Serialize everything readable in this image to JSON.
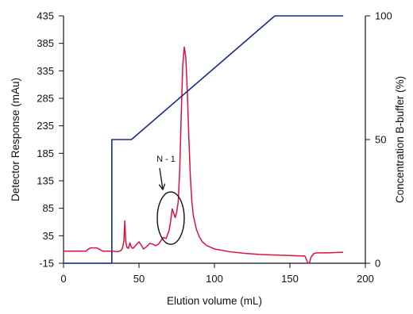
{
  "chart_data": {
    "type": "line",
    "title": "",
    "xlabel": "Elution volume (mL)",
    "ylabel_left": "Detector Response (mAu)",
    "ylabel_right": "Concentration B-buffer (%)",
    "xlim": [
      0,
      200
    ],
    "ylim_left": [
      -15,
      435
    ],
    "ylim_right": [
      0,
      100
    ],
    "x_ticks": [
      0,
      50,
      100,
      150,
      200
    ],
    "y_left_ticks": [
      -15,
      35,
      85,
      135,
      185,
      235,
      285,
      335,
      385,
      435
    ],
    "y_right_ticks": [
      0,
      50,
      100
    ],
    "grid": false,
    "legend": "none",
    "series": [
      {
        "axis": "left",
        "color": "#e0103c",
        "points": [
          [
            0,
            7
          ],
          [
            15,
            7
          ],
          [
            16,
            10
          ],
          [
            18,
            13
          ],
          [
            22,
            13
          ],
          [
            24,
            10
          ],
          [
            26,
            7
          ],
          [
            32,
            7
          ],
          [
            36,
            6
          ],
          [
            38,
            8
          ],
          [
            39,
            12
          ],
          [
            40,
            25
          ],
          [
            40.6,
            62
          ],
          [
            41.2,
            25
          ],
          [
            42,
            14
          ],
          [
            43,
            12
          ],
          [
            44,
            22
          ],
          [
            45,
            14
          ],
          [
            46,
            12
          ],
          [
            48,
            18
          ],
          [
            50,
            24
          ],
          [
            52,
            16
          ],
          [
            53,
            11
          ],
          [
            55,
            15
          ],
          [
            57,
            21
          ],
          [
            59,
            20
          ],
          [
            61,
            17
          ],
          [
            63,
            20
          ],
          [
            65,
            28
          ],
          [
            66,
            32
          ],
          [
            68,
            30
          ],
          [
            70,
            45
          ],
          [
            71,
            62
          ],
          [
            72,
            84
          ],
          [
            73,
            76
          ],
          [
            74,
            68
          ],
          [
            75,
            78
          ],
          [
            76,
            97
          ],
          [
            77,
            155
          ],
          [
            78,
            255
          ],
          [
            79,
            345
          ],
          [
            80,
            378
          ],
          [
            81,
            360
          ],
          [
            82,
            300
          ],
          [
            83,
            215
          ],
          [
            84,
            145
          ],
          [
            85,
            98
          ],
          [
            86,
            72
          ],
          [
            88,
            47
          ],
          [
            90,
            33
          ],
          [
            92,
            24
          ],
          [
            95,
            17
          ],
          [
            100,
            11
          ],
          [
            110,
            6
          ],
          [
            120,
            3
          ],
          [
            130,
            1
          ],
          [
            140,
            0
          ],
          [
            150,
            -1
          ],
          [
            160,
            -2
          ],
          [
            162,
            -15
          ],
          [
            163,
            -14
          ],
          [
            164,
            -4
          ],
          [
            166,
            3
          ],
          [
            168,
            4
          ],
          [
            175,
            4
          ],
          [
            185,
            5
          ]
        ]
      },
      {
        "axis": "right",
        "color": "#1a2a8c",
        "points": [
          [
            0,
            0
          ],
          [
            32,
            0
          ],
          [
            32,
            50
          ],
          [
            45,
            50
          ],
          [
            140,
            100
          ],
          [
            185,
            100
          ]
        ]
      }
    ],
    "annotations": [
      {
        "text": "N - 1",
        "x": 70,
        "y": 70
      }
    ]
  },
  "colors": {
    "detector": "#e0103c",
    "concentration": "#1a2a8c",
    "axis": "#111111"
  }
}
